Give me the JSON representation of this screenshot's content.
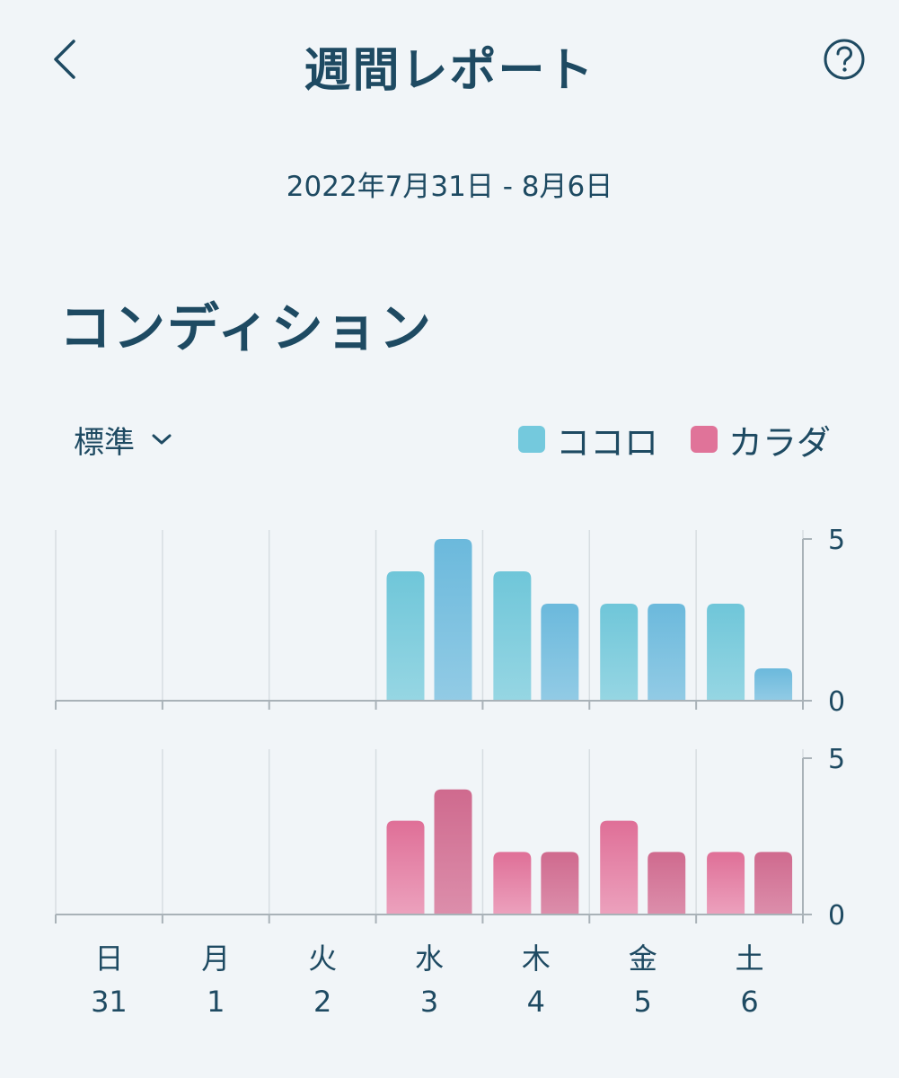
{
  "header": {
    "title": "週間レポート",
    "back_icon": "chevron-left-icon",
    "help_icon": "question-circle-icon"
  },
  "date_range": "2022年7月31日 - 8月6日",
  "section_title": "コンディション",
  "filter": {
    "selected": "標準",
    "icon": "chevron-down-icon"
  },
  "legend": [
    {
      "label": "ココロ",
      "color": "#74c9dd"
    },
    {
      "label": "カラダ",
      "color": "#e07399"
    }
  ],
  "chart_data": {
    "type": "bar",
    "categories": [
      "日",
      "月",
      "火",
      "水",
      "木",
      "金",
      "土"
    ],
    "dates": [
      "31",
      "1",
      "2",
      "3",
      "4",
      "5",
      "6"
    ],
    "panels": [
      {
        "name": "ココロ",
        "ylim": [
          0,
          5
        ],
        "yticks": [
          "0",
          "5"
        ],
        "series": [
          {
            "values": [
              null,
              null,
              null,
              4,
              4,
              3,
              3
            ],
            "color_top": "#6fc6d9",
            "color_bottom": "#96d6e3"
          },
          {
            "values": [
              null,
              null,
              null,
              5,
              3,
              3,
              1
            ],
            "color_top": "#6bb9dc",
            "color_bottom": "#92cbe5"
          }
        ]
      },
      {
        "name": "カラダ",
        "ylim": [
          0,
          5
        ],
        "yticks": [
          "0",
          "5"
        ],
        "series": [
          {
            "values": [
              null,
              null,
              null,
              3,
              2,
              3,
              2
            ],
            "color_top": "#df6f97",
            "color_bottom": "#eca1bd"
          },
          {
            "values": [
              null,
              null,
              null,
              4,
              2,
              2,
              2
            ],
            "color_top": "#cf6a8e",
            "color_bottom": "#dc8eab"
          }
        ]
      }
    ],
    "grid": true
  }
}
